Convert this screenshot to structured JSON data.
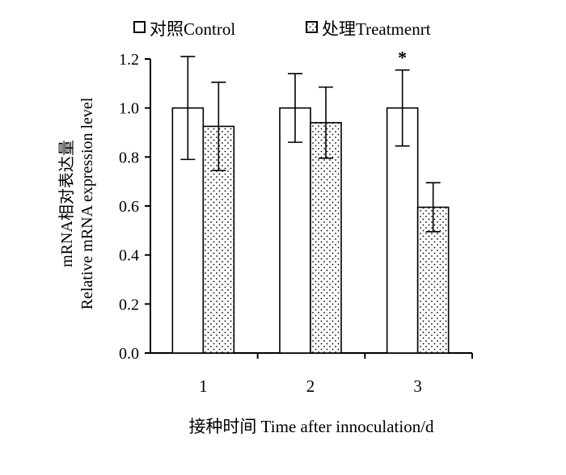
{
  "chart_data": {
    "type": "bar",
    "categories": [
      "1",
      "2",
      "3"
    ],
    "series": [
      {
        "name": "对照Control",
        "values": [
          1.0,
          1.0,
          1.0
        ],
        "errors": [
          0.21,
          0.14,
          0.155
        ],
        "fill": "open"
      },
      {
        "name": "处理Treatmenrt",
        "values": [
          0.925,
          0.94,
          0.595
        ],
        "errors": [
          0.18,
          0.145,
          0.1
        ],
        "fill": "dotted"
      }
    ],
    "significance": [
      {
        "category": "3",
        "mark": "*"
      }
    ],
    "xlabel": "接种时间 Time after innoculation/d",
    "ylabel_line1": "mRNA相对表达量",
    "ylabel_line2": "Relative mRNA expression level",
    "ylim": [
      0,
      1.2
    ],
    "yticks": [
      "0.0",
      "0.2",
      "0.4",
      "0.6",
      "0.8",
      "1.0",
      "1.2"
    ],
    "grid": false,
    "legend_position": "top"
  },
  "colors": {
    "ink": "#000000",
    "background": "#ffffff"
  }
}
